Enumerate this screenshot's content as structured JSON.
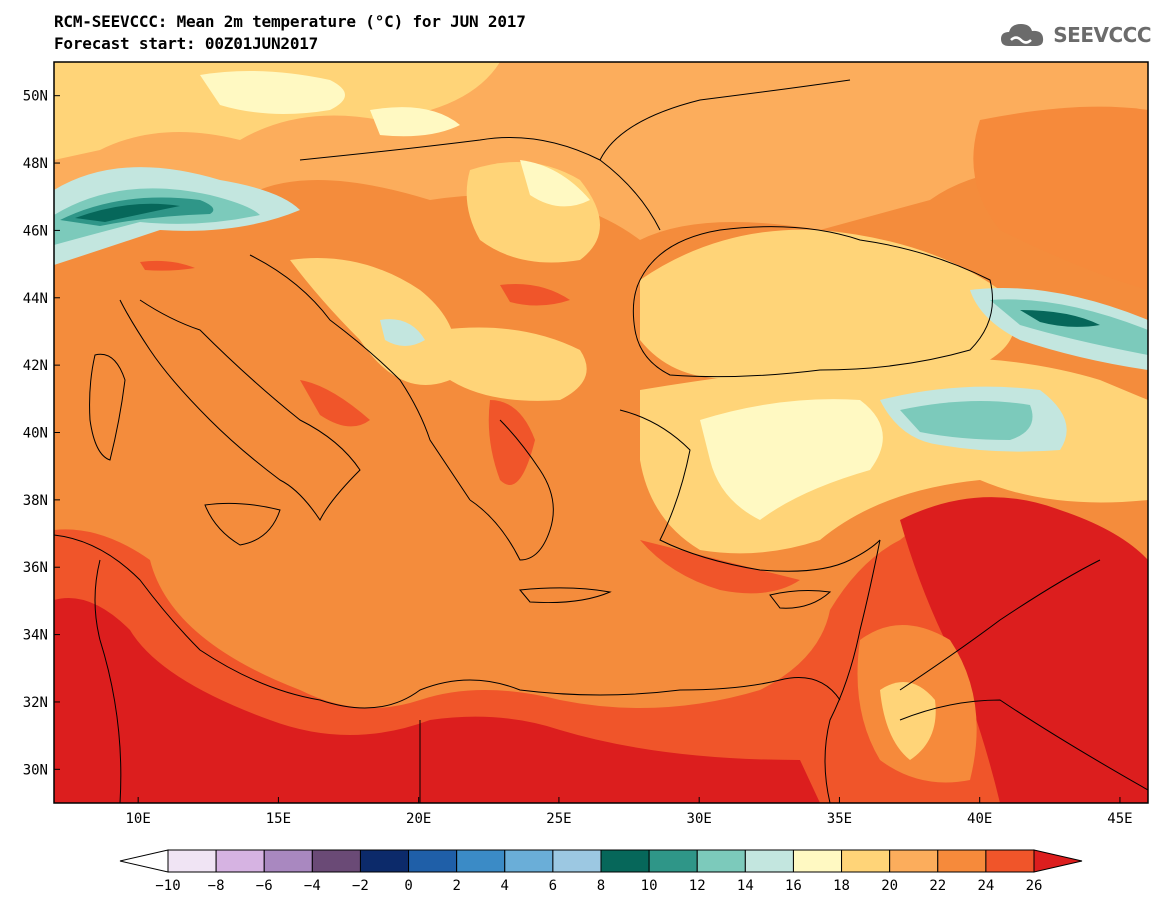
{
  "header": {
    "title_line1": "RCM-SEEVCCC: Mean 2m temperature (°C) for JUN 2017",
    "title_line2": "Forecast start: 00Z01JUN2017",
    "logo_text": "SEEVCCC",
    "logo_icon": "cloud-icon"
  },
  "map": {
    "variable": "Mean 2m temperature",
    "unit": "°C",
    "lon_range": [
      7,
      46
    ],
    "lat_range": [
      29,
      51
    ],
    "lat_labels": [
      "50N",
      "48N",
      "46N",
      "44N",
      "42N",
      "40N",
      "38N",
      "36N",
      "34N",
      "32N",
      "30N"
    ],
    "lon_labels": [
      "10E",
      "15E",
      "20E",
      "25E",
      "30E",
      "35E",
      "40E",
      "45E"
    ]
  },
  "colorbar": {
    "tick_labels": [
      "−10",
      "−8",
      "−6",
      "−4",
      "−2",
      "0",
      "2",
      "4",
      "6",
      "8",
      "10",
      "12",
      "14",
      "16",
      "18",
      "20",
      "22",
      "24",
      "26"
    ],
    "colors": [
      "#ffffff",
      "#f0e4f4",
      "#d6b3e2",
      "#a988c0",
      "#6a4a76",
      "#0c2a6a",
      "#1f5fa8",
      "#3b8bc6",
      "#6aaed8",
      "#9cc8e2",
      "#06675a",
      "#2f9688",
      "#7ccabb",
      "#c3e6df",
      "#fff9c2",
      "#ffd478",
      "#fcad5c",
      "#f68a3b",
      "#f0552a",
      "#dc1e1e"
    ]
  },
  "palette": {
    "cold_alpine": "#06675a",
    "mid_teal": "#2f9688",
    "light_teal": "#7ccabb",
    "pale_cyan": "#c3e6df",
    "pale_yellow": "#fff9c2",
    "light_orange": "#ffd478",
    "orange_20": "#fcad5c",
    "orange_22": "#f68a3b",
    "red_24": "#f0552a",
    "red_26": "#dc1e1e",
    "sea_orange": "#f48c3c"
  }
}
